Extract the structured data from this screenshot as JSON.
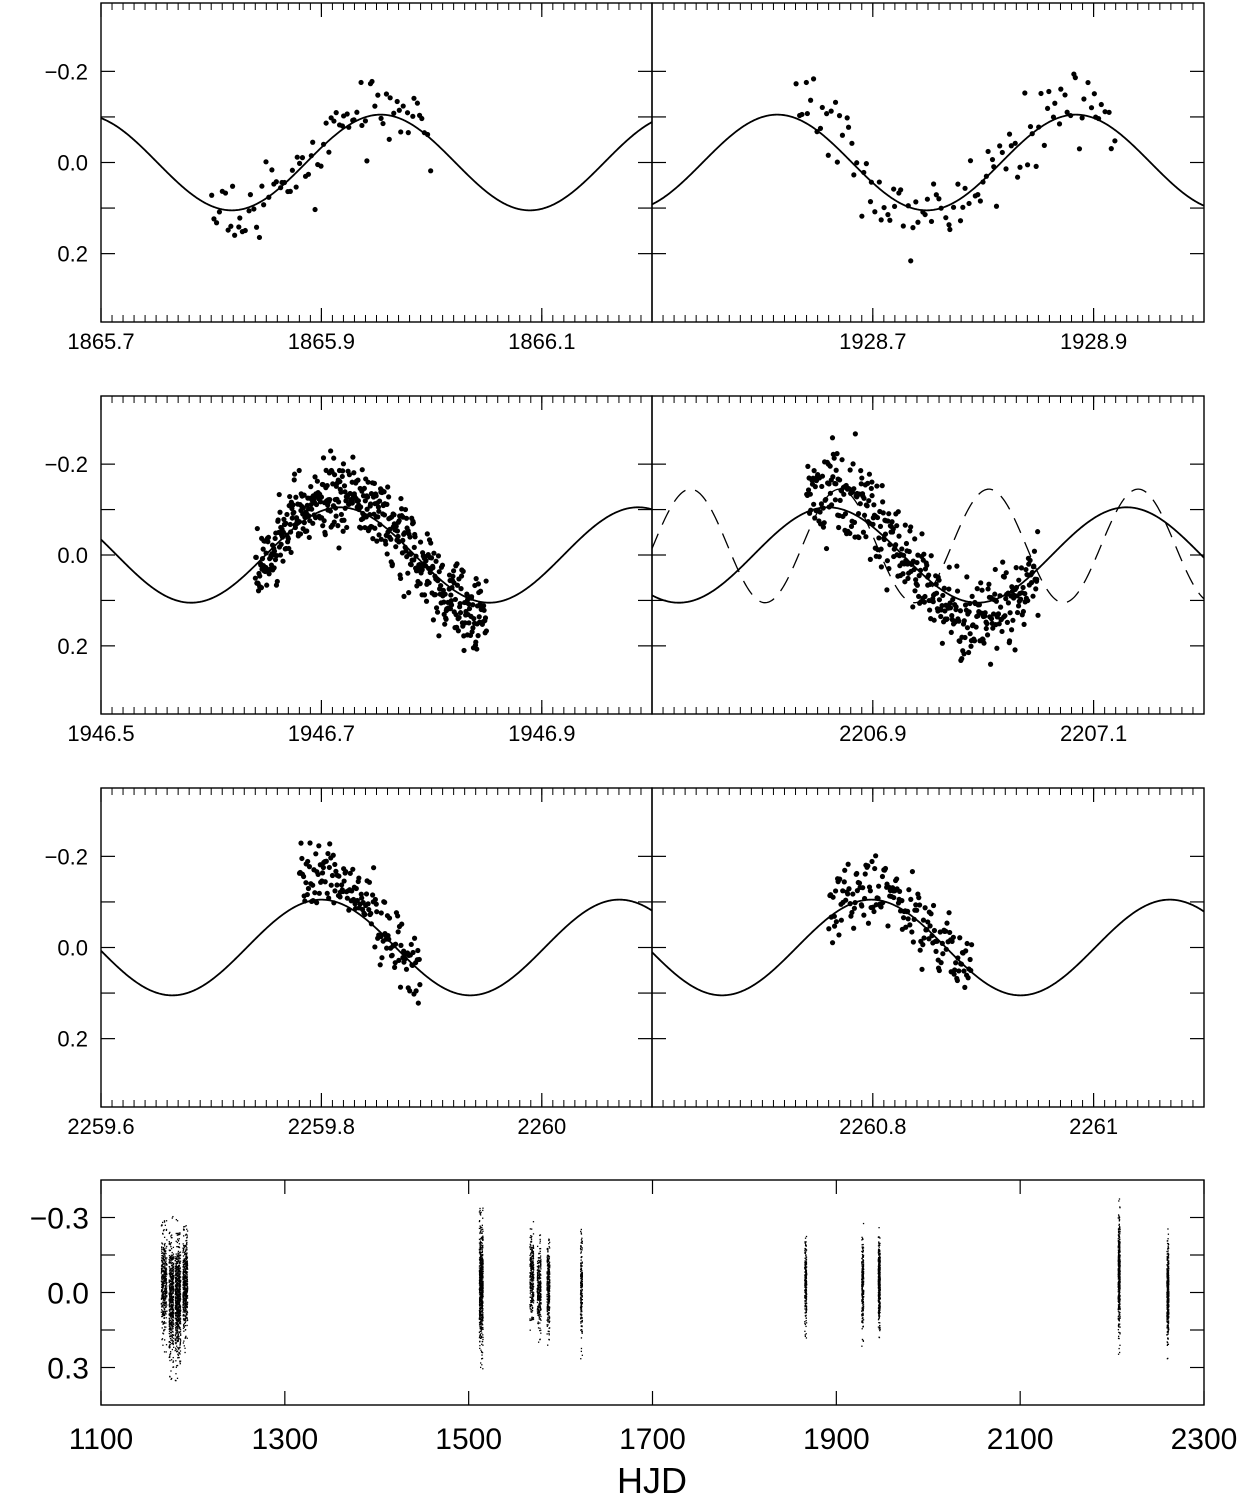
{
  "figure": {
    "xlabel_bottom": "HJD",
    "marker_color": "#000000",
    "line_color": "#000000"
  },
  "chart_data": [
    {
      "type": "scatter",
      "id": "r1-left",
      "xlim": [
        1865.7,
        1866.2
      ],
      "ylim": [
        0.35,
        -0.35
      ],
      "yticks": [
        -0.2,
        0.0,
        0.2
      ],
      "ytick_labels": [
        "−0.2",
        "0.0",
        "0.2"
      ],
      "xticks": [
        1865.7,
        1865.9,
        1866.1
      ],
      "xtick_labels": [
        "1865.7",
        "1865.9",
        "1866.1"
      ],
      "model": {
        "amplitude": 0.105,
        "period": 0.2704,
        "peak_x": 1865.9539,
        "style": "solid"
      },
      "segments": [
        {
          "x_start": 1865.8,
          "x_end": 1866.0,
          "n": 85,
          "amp_scale": 1.1,
          "noise": 0.035,
          "seed": 11
        }
      ]
    },
    {
      "type": "scatter",
      "id": "r1-right",
      "xlim": [
        1928.5,
        1929.0
      ],
      "ylim": [
        0.35,
        -0.35
      ],
      "yticks": [
        -0.2,
        0.0,
        0.2
      ],
      "ytick_labels": [
        "−0.2",
        "0.0",
        "0.2"
      ],
      "xticks": [
        1928.7,
        1928.9
      ],
      "xtick_labels": [
        "1928.7",
        "1928.9"
      ],
      "model": {
        "amplitude": 0.105,
        "period": 0.2704,
        "peak_x": 1928.6135,
        "style": "solid"
      },
      "segments": [
        {
          "x_start": 1928.63,
          "x_end": 1928.92,
          "n": 110,
          "amp_scale": 1.25,
          "noise": 0.04,
          "seed": 23
        }
      ]
    },
    {
      "type": "scatter",
      "id": "r2-left",
      "xlim": [
        1946.5,
        1947.0
      ],
      "ylim": [
        0.35,
        -0.35
      ],
      "yticks": [
        -0.2,
        0.0,
        0.2
      ],
      "ytick_labels": [
        "−0.2",
        "0.0",
        "0.2"
      ],
      "xticks": [
        1946.5,
        1946.7,
        1946.9
      ],
      "xtick_labels": [
        "1946.5",
        "1946.7",
        "1946.9"
      ],
      "model": {
        "amplitude": 0.105,
        "period": 0.2704,
        "peak_x": 1946.717,
        "style": "solid"
      },
      "segments": [
        {
          "x_start": 1946.64,
          "x_end": 1946.85,
          "n": 520,
          "amp_scale": 1.3,
          "noise": 0.04,
          "seed": 37
        }
      ]
    },
    {
      "type": "scatter",
      "id": "r2-right",
      "xlim": [
        2206.7,
        2207.2
      ],
      "ylim": [
        0.35,
        -0.35
      ],
      "yticks": [
        -0.2,
        0.0,
        0.2
      ],
      "ytick_labels": [
        "−0.2",
        "0.0",
        "0.2"
      ],
      "xticks": [
        2206.9,
        2207.1
      ],
      "xtick_labels": [
        "2206.9",
        "2207.1"
      ],
      "model": {
        "amplitude": 0.105,
        "period": 0.2704,
        "peak_x": 2206.8595,
        "style": "solid"
      },
      "model2": {
        "amplitude": 0.125,
        "period": 0.1352,
        "peak_x": 2206.87,
        "offset": -0.02,
        "style": "dashed"
      },
      "segments": [
        {
          "x_start": 2206.84,
          "x_end": 2207.05,
          "n": 400,
          "amp_scale": 1.4,
          "noise": 0.045,
          "seed": 51
        }
      ]
    },
    {
      "type": "scatter",
      "id": "r3-left",
      "xlim": [
        2259.6,
        2260.1
      ],
      "ylim": [
        0.35,
        -0.35
      ],
      "yticks": [
        -0.2,
        0.0,
        0.2
      ],
      "ytick_labels": [
        "−0.2",
        "0.0",
        "0.2"
      ],
      "xticks": [
        2259.6,
        2259.8,
        2260.0
      ],
      "xtick_labels": [
        "2259.6",
        "2259.8",
        "2260"
      ],
      "model": {
        "amplitude": 0.105,
        "period": 0.2704,
        "peak_x": 2259.7999,
        "style": "solid"
      },
      "segments": [
        {
          "x_start": 2259.78,
          "x_end": 2259.89,
          "n": 160,
          "amp_scale": 1.55,
          "noise": 0.035,
          "seed": 67
        }
      ]
    },
    {
      "type": "scatter",
      "id": "r3-right",
      "xlim": [
        2260.6,
        2261.1
      ],
      "ylim": [
        0.35,
        -0.35
      ],
      "yticks": [
        -0.2,
        0.0,
        0.2
      ],
      "ytick_labels": [
        "−0.2",
        "0.0",
        "0.2"
      ],
      "xticks": [
        2260.8,
        2261.0
      ],
      "xtick_labels": [
        "2260.8",
        "2261"
      ],
      "model": {
        "amplitude": 0.105,
        "period": 0.2704,
        "peak_x": 2260.7986,
        "style": "solid"
      },
      "segments": [
        {
          "x_start": 2260.76,
          "x_end": 2260.89,
          "n": 170,
          "amp_scale": 1.2,
          "noise": 0.035,
          "seed": 79
        }
      ]
    },
    {
      "type": "scatter",
      "id": "r4-full",
      "xlabel": "HJD",
      "xlim": [
        1100,
        2300
      ],
      "ylim": [
        0.45,
        -0.45
      ],
      "yticks": [
        -0.3,
        0.0,
        0.3
      ],
      "ytick_labels": [
        "−0.3",
        "0.0",
        "0.3"
      ],
      "xticks": [
        1100,
        1300,
        1500,
        1700,
        1900,
        2100,
        2300
      ],
      "xtick_labels": [
        "1100",
        "1300",
        "1500",
        "1700",
        "1900",
        "2100",
        "2300"
      ],
      "clusters": [
        {
          "x_center": 1168,
          "x_width": 6,
          "n": 400,
          "y_low": -0.33,
          "y_high": 0.25
        },
        {
          "x_center": 1176,
          "x_width": 5,
          "n": 500,
          "y_low": -0.32,
          "y_high": 0.35
        },
        {
          "x_center": 1183,
          "x_width": 6,
          "n": 700,
          "y_low": -0.31,
          "y_high": 0.35
        },
        {
          "x_center": 1191,
          "x_width": 5,
          "n": 500,
          "y_low": -0.3,
          "y_high": 0.24
        },
        {
          "x_center": 1513,
          "x_width": 4,
          "n": 700,
          "y_low": -0.36,
          "y_high": 0.32
        },
        {
          "x_center": 1568,
          "x_width": 4,
          "n": 300,
          "y_low": -0.31,
          "y_high": 0.18
        },
        {
          "x_center": 1576,
          "x_width": 4,
          "n": 300,
          "y_low": -0.24,
          "y_high": 0.2
        },
        {
          "x_center": 1586,
          "x_width": 3,
          "n": 300,
          "y_low": -0.26,
          "y_high": 0.22
        },
        {
          "x_center": 1622,
          "x_width": 2,
          "n": 200,
          "y_low": -0.31,
          "y_high": 0.27
        },
        {
          "x_center": 1866,
          "x_width": 2,
          "n": 250,
          "y_low": -0.28,
          "y_high": 0.19
        },
        {
          "x_center": 1928,
          "x_width": 2,
          "n": 250,
          "y_low": -0.29,
          "y_high": 0.23
        },
        {
          "x_center": 1946,
          "x_width": 2,
          "n": 450,
          "y_low": -0.27,
          "y_high": 0.2
        },
        {
          "x_center": 2207,
          "x_width": 2,
          "n": 450,
          "y_low": -0.4,
          "y_high": 0.25
        },
        {
          "x_center": 2260,
          "x_width": 2,
          "n": 450,
          "y_low": -0.28,
          "y_high": 0.27
        }
      ]
    }
  ]
}
